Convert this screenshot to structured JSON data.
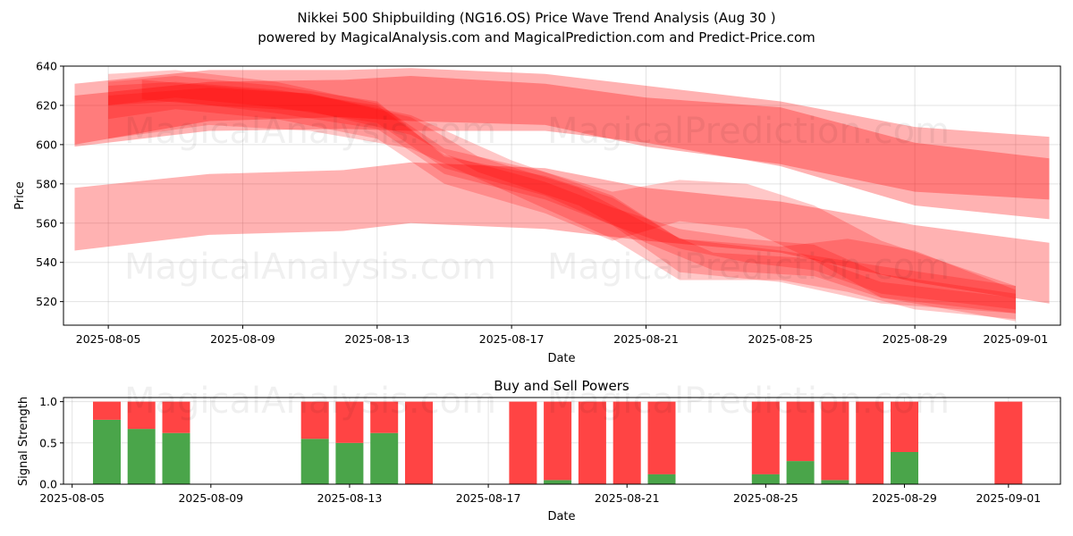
{
  "header": {
    "title": "Nikkei 500 Shipbuilding (NG16.OS) Price Wave Trend Analysis (Aug 30 )",
    "subtitle": "powered by MagicalAnalysis.com and MagicalPrediction.com and Predict-Price.com"
  },
  "watermarks": [
    "MagicalAnalysis.com",
    "MagicalPrediction.com"
  ],
  "chart_data": [
    {
      "type": "area",
      "xlabel": "Date",
      "ylabel": "Price",
      "ylim": [
        508,
        640
      ],
      "xlim": [
        "2025-08-03 16:00",
        "2025-09-02 08:00"
      ],
      "grid": true,
      "yticks": [
        520,
        540,
        560,
        580,
        600,
        620,
        640
      ],
      "xticks": [
        "2025-08-05",
        "2025-08-09",
        "2025-08-13",
        "2025-08-17",
        "2025-08-21",
        "2025-08-25",
        "2025-08-29",
        "2025-09-01"
      ],
      "band_color": "#ff0000",
      "bands": [
        {
          "x": [
            "2025-08-04",
            "2025-08-08",
            "2025-08-12",
            "2025-08-14",
            "2025-08-18",
            "2025-08-21",
            "2025-08-25",
            "2025-08-29",
            "2025-09-02"
          ],
          "upper": [
            631,
            638,
            638,
            639,
            636,
            630,
            622,
            609,
            604
          ],
          "lower": [
            599,
            607,
            608,
            607,
            607,
            601,
            589,
            569,
            562
          ]
        },
        {
          "x": [
            "2025-08-04",
            "2025-08-08",
            "2025-08-12",
            "2025-08-14",
            "2025-08-18",
            "2025-08-21",
            "2025-08-25",
            "2025-08-29",
            "2025-09-02"
          ],
          "upper": [
            625,
            632,
            633,
            635,
            631,
            624,
            619,
            601,
            593
          ],
          "lower": [
            600,
            612,
            614,
            612,
            610,
            599,
            590,
            576,
            572
          ]
        },
        {
          "x": [
            "2025-08-04",
            "2025-08-08",
            "2025-08-12",
            "2025-08-14",
            "2025-08-18",
            "2025-08-21",
            "2025-08-25",
            "2025-08-29",
            "2025-09-02"
          ],
          "upper": [
            578,
            585,
            587,
            591,
            588,
            578,
            571,
            559,
            550
          ],
          "lower": [
            546,
            554,
            556,
            560,
            557,
            551,
            545,
            530,
            519
          ]
        },
        {
          "x": [
            "2025-08-05",
            "2025-08-07",
            "2025-08-10",
            "2025-08-13",
            "2025-08-15",
            "2025-08-18",
            "2025-08-20",
            "2025-08-22",
            "2025-08-25",
            "2025-08-28",
            "2025-09-01"
          ],
          "upper": [
            632,
            635,
            630,
            622,
            594,
            584,
            573,
            552,
            546,
            538,
            528
          ],
          "lower": [
            620,
            622,
            616,
            608,
            585,
            572,
            559,
            535,
            530,
            519,
            514
          ]
        },
        {
          "x": [
            "2025-08-05",
            "2025-08-07",
            "2025-08-10",
            "2025-08-13",
            "2025-08-15",
            "2025-08-18",
            "2025-08-20",
            "2025-08-22",
            "2025-08-24",
            "2025-08-26",
            "2025-08-28",
            "2025-09-01"
          ],
          "upper": [
            636,
            638,
            632,
            621,
            598,
            586,
            576,
            582,
            580,
            569,
            551,
            528
          ],
          "lower": [
            613,
            618,
            613,
            603,
            580,
            565,
            551,
            561,
            557,
            541,
            522,
            510
          ]
        },
        {
          "x": [
            "2025-08-05",
            "2025-08-07",
            "2025-08-10",
            "2025-08-13",
            "2025-08-15",
            "2025-08-18",
            "2025-08-20",
            "2025-08-22",
            "2025-08-24",
            "2025-08-26",
            "2025-08-28",
            "2025-09-01"
          ],
          "upper": [
            630,
            632,
            628,
            620,
            595,
            581,
            568,
            557,
            552,
            549,
            534,
            524
          ],
          "lower": [
            620,
            624,
            619,
            611,
            588,
            574,
            559,
            547,
            540,
            536,
            524,
            516
          ]
        },
        {
          "x": [
            "2025-08-06",
            "2025-08-08",
            "2025-08-11",
            "2025-08-14",
            "2025-08-16",
            "2025-08-19",
            "2025-08-21",
            "2025-08-23",
            "2025-08-26",
            "2025-08-28",
            "2025-09-01"
          ],
          "upper": [
            633,
            630,
            626,
            614,
            594,
            578,
            560,
            545,
            542,
            530,
            522
          ],
          "lower": [
            623,
            620,
            617,
            605,
            586,
            569,
            550,
            536,
            533,
            522,
            514
          ]
        },
        {
          "x": [
            "2025-08-05",
            "2025-08-08",
            "2025-08-11",
            "2025-08-14",
            "2025-08-17",
            "2025-08-20",
            "2025-08-22",
            "2025-08-25",
            "2025-08-27",
            "2025-08-29",
            "2025-09-01"
          ],
          "upper": [
            625,
            629,
            626,
            615,
            592,
            574,
            552,
            548,
            552,
            546,
            526
          ],
          "lower": [
            603,
            610,
            607,
            598,
            575,
            552,
            531,
            531,
            525,
            516,
            511
          ]
        }
      ]
    },
    {
      "type": "bar",
      "title": "Buy and Sell Powers",
      "xlabel": "Date",
      "ylabel": "Signal Strength",
      "ylim": [
        0,
        1.05
      ],
      "xlim": [
        "2025-08-04 18:00",
        "2025-09-02 12:00"
      ],
      "grid": true,
      "yticks": [
        0.0,
        0.5,
        1.0
      ],
      "xticks": [
        "2025-08-05",
        "2025-08-09",
        "2025-08-13",
        "2025-08-17",
        "2025-08-21",
        "2025-08-25",
        "2025-08-29",
        "2025-09-01"
      ],
      "buy_color": "#4aa54a",
      "sell_color": "#ff4444",
      "categories": [
        "2025-08-06",
        "2025-08-07",
        "2025-08-08",
        "2025-08-12",
        "2025-08-13",
        "2025-08-14",
        "2025-08-15",
        "2025-08-18",
        "2025-08-19",
        "2025-08-20",
        "2025-08-21",
        "2025-08-22",
        "2025-08-25",
        "2025-08-26",
        "2025-08-27",
        "2025-08-28",
        "2025-08-29",
        "2025-09-01"
      ],
      "series": [
        {
          "values": [
            0.78,
            0.67,
            0.62,
            0.55,
            0.5,
            0.62,
            0.0,
            0.0,
            0.05,
            0.0,
            0.0,
            0.12,
            0.12,
            0.28,
            0.05,
            0.0,
            0.39,
            0.0
          ]
        },
        {
          "values": [
            0.22,
            0.33,
            0.38,
            0.45,
            0.5,
            0.38,
            1.0,
            1.0,
            0.95,
            1.0,
            1.0,
            0.88,
            0.88,
            0.72,
            0.95,
            1.0,
            0.61,
            1.0
          ]
        }
      ]
    }
  ]
}
